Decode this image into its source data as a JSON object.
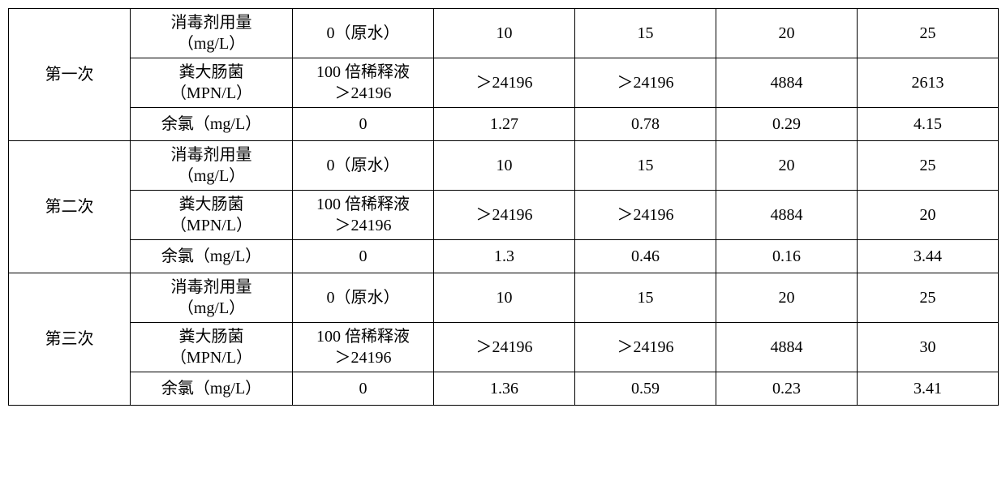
{
  "groups": [
    {
      "label": "第一次",
      "rows": [
        {
          "param": "消毒剂用量\n（mg/L）",
          "v0": "0（原水）",
          "v1": "10",
          "v2": "15",
          "v3": "20",
          "v4": "25"
        },
        {
          "param": "粪大肠菌\n（MPN/L）",
          "v0": "100 倍稀释液\n＞24196",
          "v1": "＞24196",
          "v2": "＞24196",
          "v3": "4884",
          "v4": "2613"
        },
        {
          "param": "余氯（mg/L）",
          "v0": "0",
          "v1": "1.27",
          "v2": "0.78",
          "v3": "0.29",
          "v4": "4.15"
        }
      ]
    },
    {
      "label": "第二次",
      "rows": [
        {
          "param": "消毒剂用量\n（mg/L）",
          "v0": "0（原水）",
          "v1": "10",
          "v2": "15",
          "v3": "20",
          "v4": "25"
        },
        {
          "param": "粪大肠菌\n（MPN/L）",
          "v0": "100 倍稀释液\n＞24196",
          "v1": "＞24196",
          "v2": "＞24196",
          "v3": "4884",
          "v4": "20"
        },
        {
          "param": "余氯（mg/L）",
          "v0": "0",
          "v1": "1.3",
          "v2": "0.46",
          "v3": "0.16",
          "v4": "3.44"
        }
      ]
    },
    {
      "label": "第三次",
      "rows": [
        {
          "param": "消毒剂用量\n（mg/L）",
          "v0": "0（原水）",
          "v1": "10",
          "v2": "15",
          "v3": "20",
          "v4": "25"
        },
        {
          "param": "粪大肠菌\n（MPN/L）",
          "v0": "100 倍稀释液\n＞24196",
          "v1": "＞24196",
          "v2": "＞24196",
          "v3": "4884",
          "v4": "30"
        },
        {
          "param": "余氯（mg/L）",
          "v0": "0",
          "v1": "1.36",
          "v2": "0.59",
          "v3": "0.23",
          "v4": "3.41"
        }
      ]
    }
  ],
  "style": {
    "background_color": "#ffffff",
    "border_color": "#000000",
    "text_color": "#000000",
    "font_size": 20,
    "font_family": "SimSun"
  }
}
